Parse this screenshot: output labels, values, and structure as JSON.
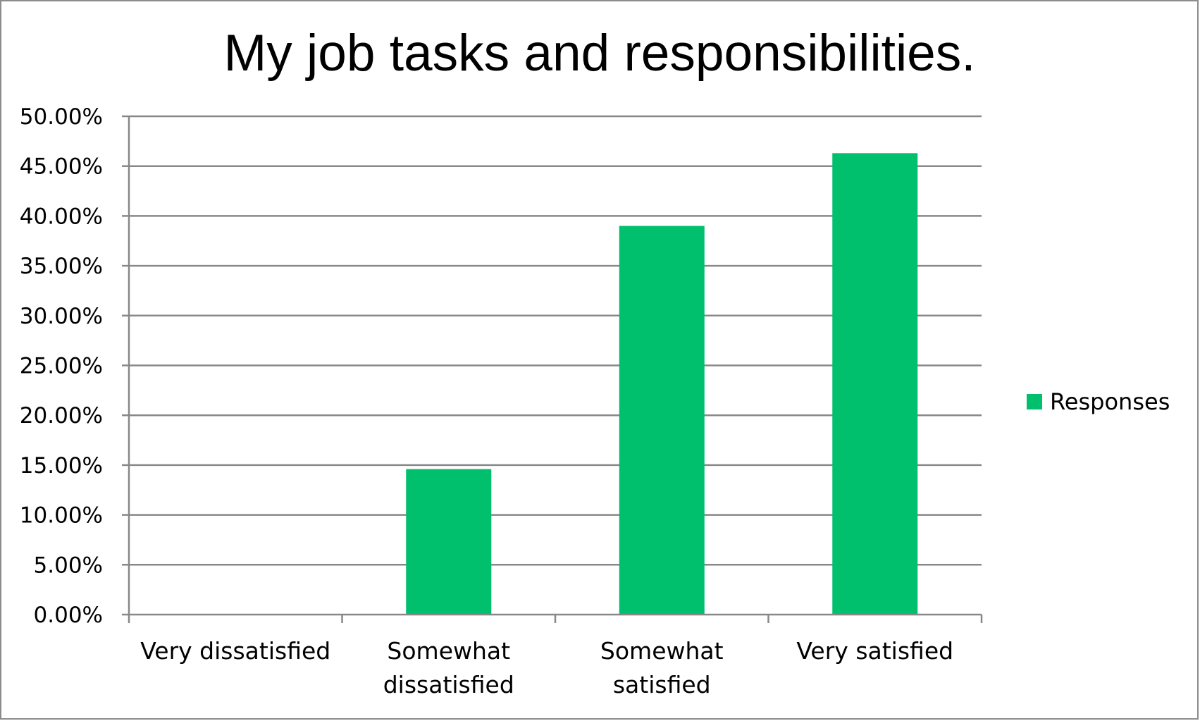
{
  "chart_data": {
    "type": "bar",
    "title": "My job tasks and responsibilities.",
    "categories": [
      [
        "Very dissatisfied"
      ],
      [
        "Somewhat",
        "dissatisfied"
      ],
      [
        "Somewhat",
        "satisfied"
      ],
      [
        "Very satisfied"
      ]
    ],
    "series": [
      {
        "name": "Responses",
        "values": [
          0.0,
          14.6,
          39.0,
          46.3
        ],
        "color": "#00c06e"
      }
    ],
    "ylim": [
      0,
      50
    ],
    "ytick_step": 5,
    "ytick_format": "0.00%",
    "grid": true,
    "legend_position": "right"
  }
}
